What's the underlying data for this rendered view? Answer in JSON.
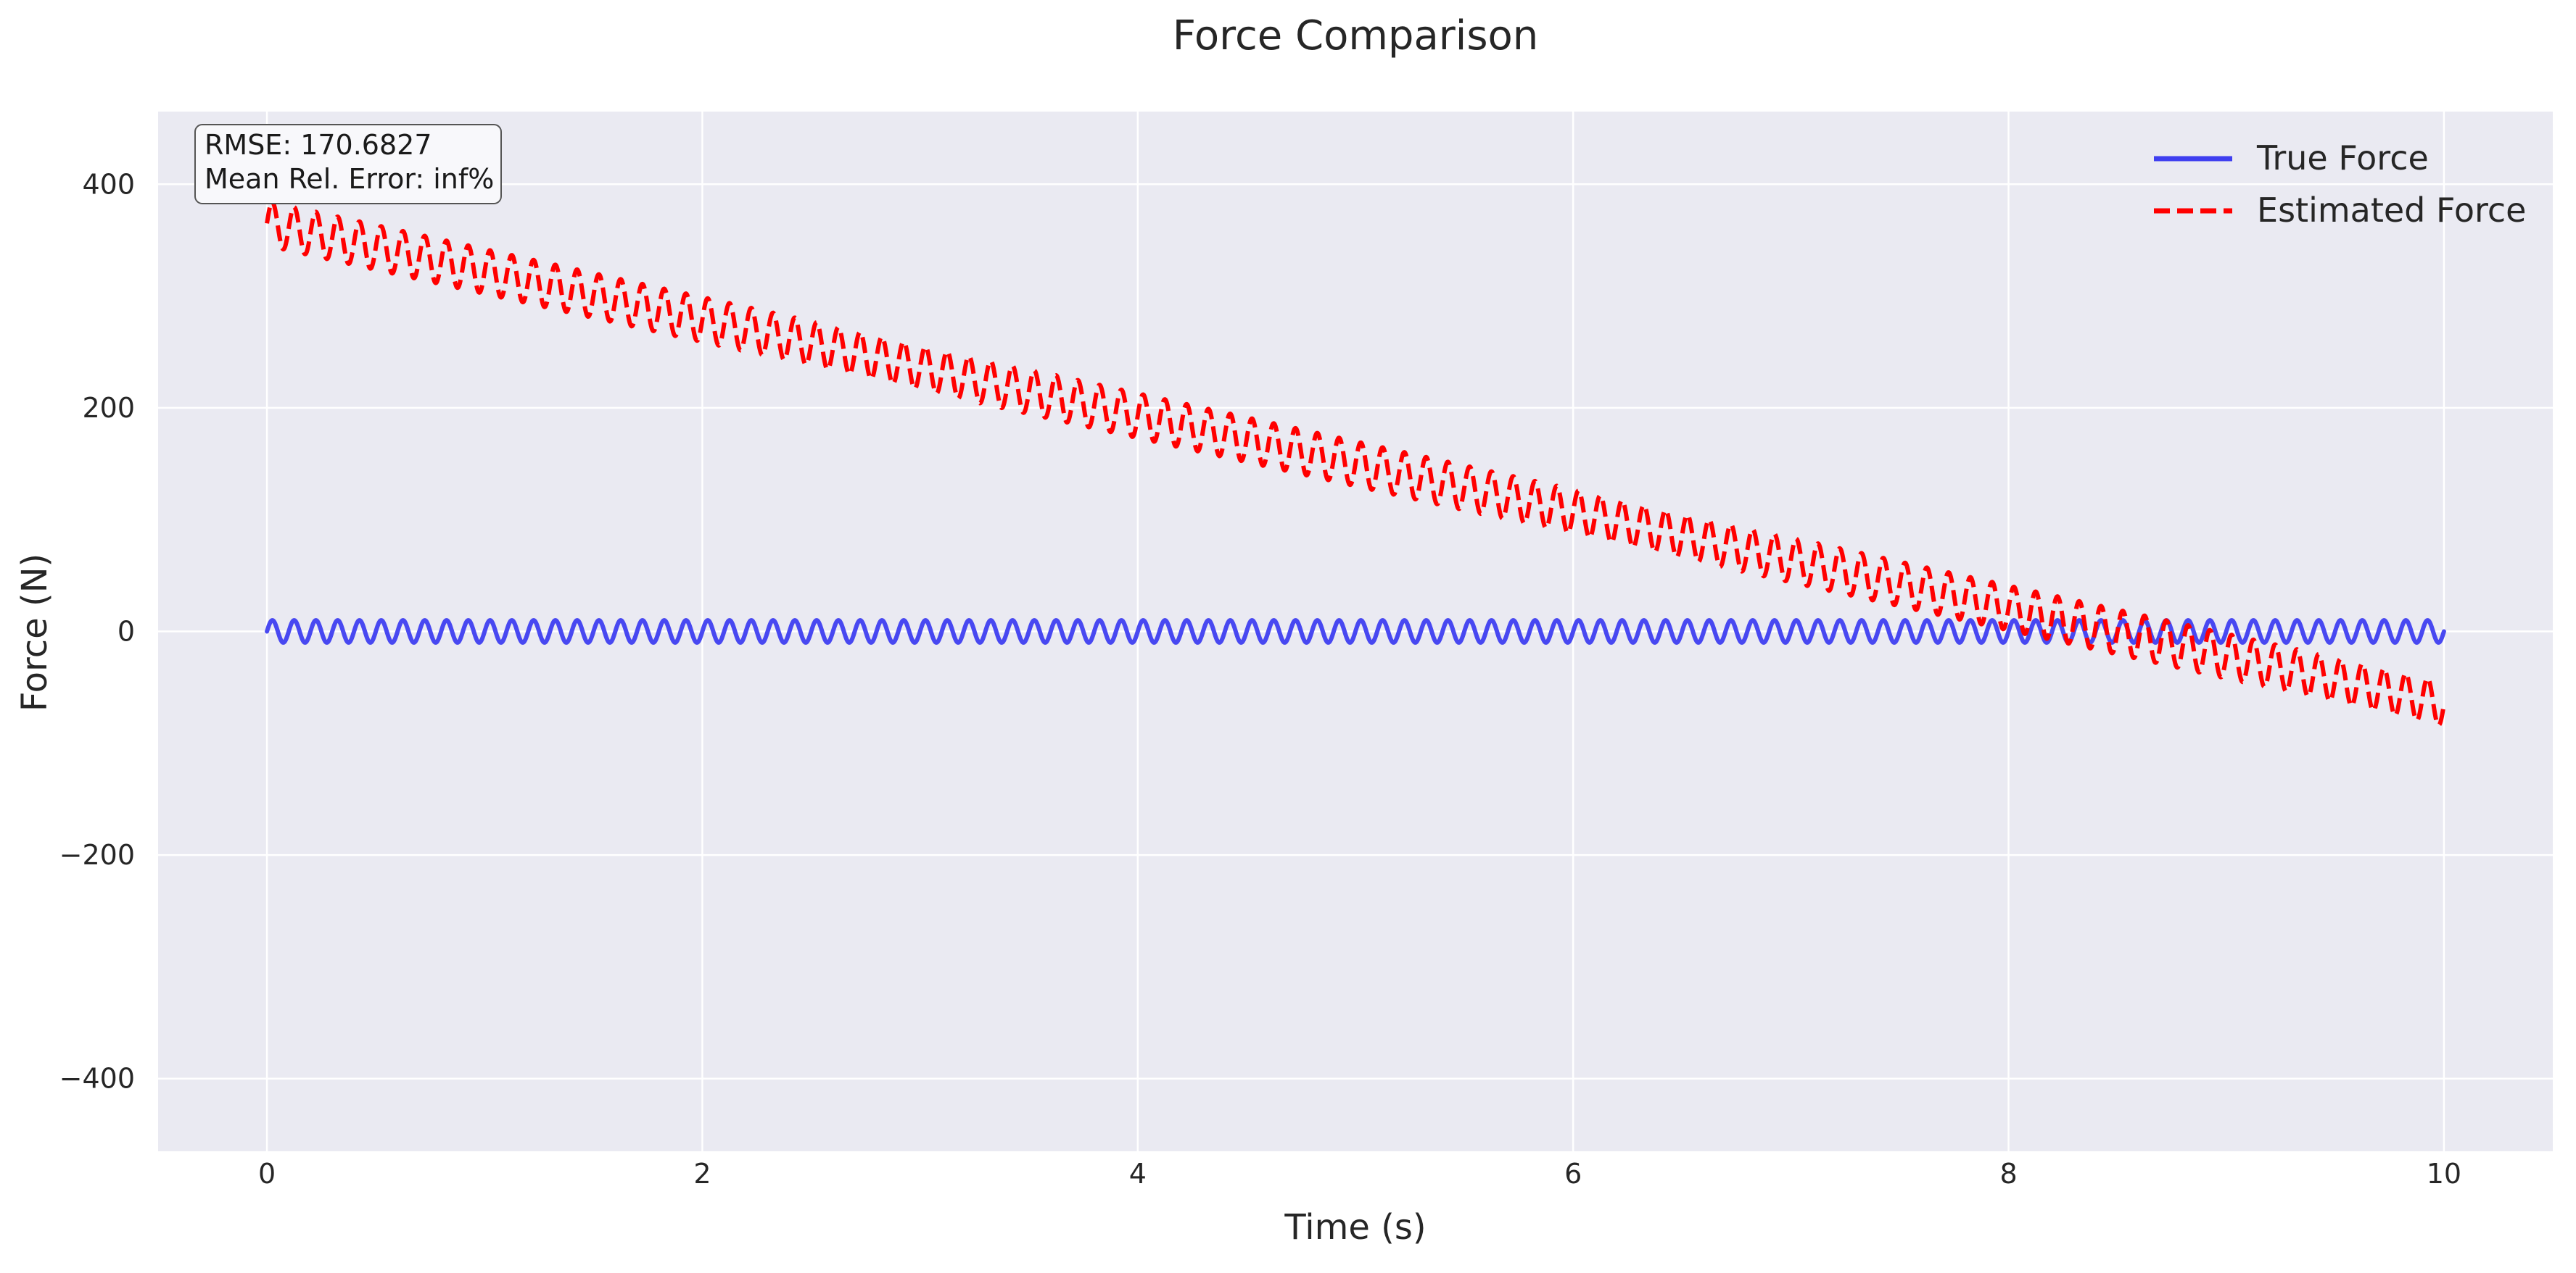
{
  "chart_data": {
    "type": "line",
    "title": "Force Comparison",
    "xlabel": "Time (s)",
    "ylabel": "Force (N)",
    "xlim": [
      -0.5,
      10.5
    ],
    "ylim": [
      -465,
      465
    ],
    "xticks": [
      0,
      2,
      4,
      6,
      8,
      10
    ],
    "xtick_labels": [
      "0",
      "2",
      "4",
      "6",
      "8",
      "10"
    ],
    "yticks": [
      400,
      200,
      0,
      -200,
      -400
    ],
    "ytick_labels": [
      "400",
      "200",
      "0",
      "−200",
      "−400"
    ],
    "grid": true,
    "legend_position": "top-right",
    "annotation": {
      "lines": [
        "RMSE: 170.6827",
        "Mean Rel. Error: inf%"
      ],
      "position": "top-left"
    },
    "series": [
      {
        "name": "True Force",
        "color": "#3f3ff0",
        "linestyle": "solid",
        "model": "sine",
        "x_range": [
          0,
          10
        ],
        "amplitude": 10,
        "cycles_per_second": 10
      },
      {
        "name": "Estimated Force",
        "color": "#ff0000",
        "linestyle": "dashed",
        "model": "linear trend plus oscillation",
        "x_range": [
          0,
          10
        ],
        "trend_start": 365,
        "trend_end": -65,
        "amplitude": 20,
        "cycles_per_second": 10
      }
    ]
  }
}
